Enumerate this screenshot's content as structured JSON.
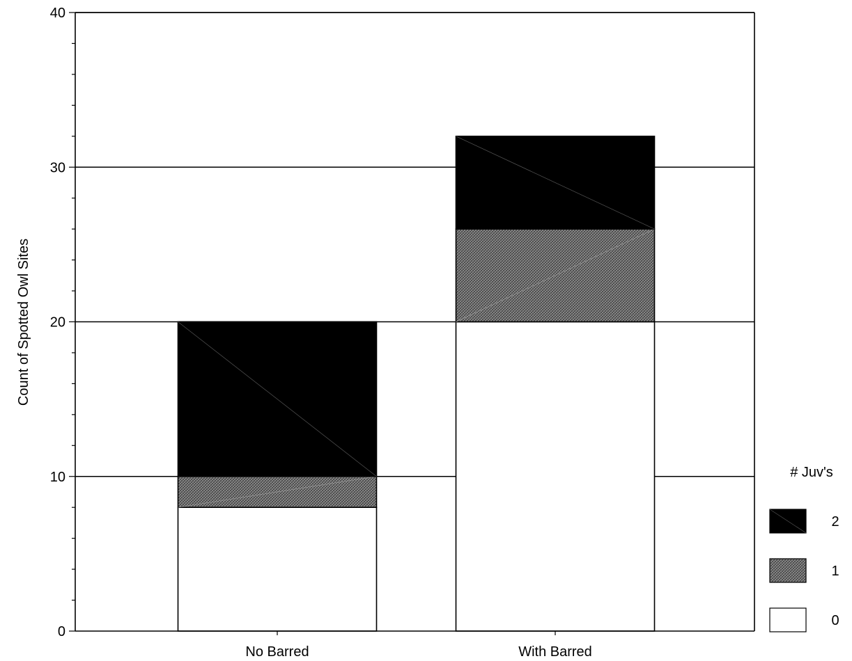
{
  "chart_data": {
    "type": "bar",
    "stacked": true,
    "categories": [
      "No Barred",
      "With Barred"
    ],
    "series": [
      {
        "name": "0",
        "values": [
          8,
          20
        ],
        "pattern": "white"
      },
      {
        "name": "1",
        "values": [
          2,
          6
        ],
        "pattern": "crosshatch-gray"
      },
      {
        "name": "2",
        "values": [
          10,
          6
        ],
        "pattern": "solid-black"
      }
    ],
    "title": "",
    "xlabel": "",
    "ylabel": "Count of Spotted Owl Sites",
    "ylim": [
      0,
      40
    ],
    "yticks": [
      0,
      10,
      20,
      30,
      40
    ],
    "grid": true,
    "legend": {
      "title": "# Juv's",
      "placement": "right",
      "order": [
        "2",
        "1",
        "0"
      ]
    },
    "colors": {
      "solid": "#000000",
      "hatch_bg": "#7a7a7a",
      "hatch_fg": "#2e2e2e",
      "empty": "#ffffff"
    }
  }
}
